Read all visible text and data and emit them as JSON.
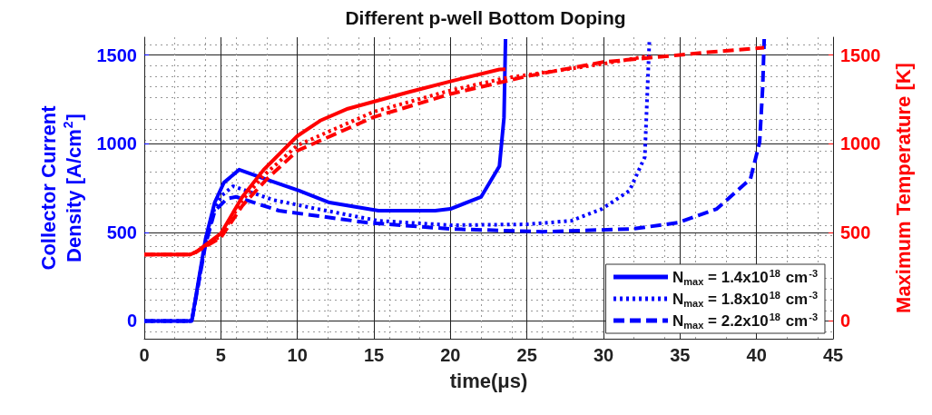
{
  "chart_data": {
    "type": "line",
    "title": "Different p-well Bottom Doping",
    "xlabel": "time(μs)",
    "ylabel": "Collector Current Density [A/cm$^{2}$]",
    "y2label": "Maximum Temperature [K]",
    "xlim": [
      0,
      45
    ],
    "xticks": [
      0,
      5,
      10,
      15,
      20,
      25,
      30,
      35,
      40,
      45
    ],
    "ylim": [
      -100,
      1600
    ],
    "yticks": [
      0,
      500,
      1000,
      1500
    ],
    "y2lim": [
      -100,
      1600
    ],
    "y2ticks": [
      0,
      500,
      1000,
      1500
    ],
    "grid": true,
    "legend": "bottom right",
    "marker": "none",
    "series": [
      {
        "name": "N$_{max}$ = 1.4x10$^{18}$ cm$^{-3}$",
        "color": "#0000ff",
        "line_style": "solid",
        "x": [
          0,
          3.1,
          4.0,
          4.6,
          5.2,
          6.2,
          7.9,
          10.1,
          12.1,
          15.3,
          19,
          20,
          22,
          23.2,
          23.5,
          23.6
        ],
        "values": [
          0,
          0,
          462,
          668,
          780,
          853,
          801,
          735,
          668,
          622,
          622,
          632,
          699,
          873,
          1146,
          1590
        ]
      },
      {
        "name": "N$_{max}$ = 1.8x10$^{18}$ cm$^{-3}$",
        "color": "#0000ff",
        "line_style": "dotted",
        "x": [
          0,
          3.1,
          4.0,
          4.6,
          5.1,
          5.8,
          8.4,
          11.3,
          15.3,
          20,
          25,
          27.9,
          29.9,
          31.7,
          32.7,
          32.8,
          33.0
        ],
        "values": [
          0,
          0,
          440,
          640,
          710,
          760,
          683,
          632,
          565,
          540,
          545,
          565,
          632,
          735,
          925,
          1146,
          1582
        ]
      },
      {
        "name": "N$_{max}$ = 2.2x10$^{18}$ cm$^{-3}$",
        "color": "#0000ff",
        "line_style": "dashed",
        "x": [
          0,
          3.1,
          4.0,
          4.6,
          5.4,
          6.0,
          8.8,
          14.5,
          20,
          26,
          31.9,
          34.9,
          37.4,
          39.6,
          40.2,
          40.4,
          40.5
        ],
        "values": [
          0,
          0,
          430,
          620,
          690,
          700,
          622,
          555,
          519,
          503,
          519,
          555,
          632,
          801,
          1007,
          1315,
          1590
        ]
      },
      {
        "color": "#ff0000",
        "line_style": "solid",
        "axis": "y2",
        "x": [
          0,
          3,
          3.4,
          5,
          6.4,
          7.8,
          10,
          11.5,
          13.3,
          17.2,
          20,
          23.2,
          23.6
        ],
        "values": [
          375,
          375,
          390,
          493,
          699,
          853,
          1043,
          1130,
          1197,
          1289,
          1351,
          1418,
          1420
        ]
      },
      {
        "color": "#ff0000",
        "line_style": "dotted",
        "axis": "y2",
        "x": [
          0,
          3,
          3.4,
          5,
          6.4,
          7.8,
          10,
          15,
          20,
          23.6,
          25,
          30,
          33
        ],
        "values": [
          375,
          375,
          390,
          480,
          680,
          820,
          990,
          1180,
          1300,
          1370,
          1387,
          1450,
          1495
        ]
      },
      {
        "color": "#ff0000",
        "line_style": "dashed",
        "axis": "y2",
        "x": [
          0,
          3,
          3.4,
          5,
          6.4,
          8,
          10,
          15,
          20,
          25,
          30,
          35,
          36.8,
          40.5
        ],
        "values": [
          375,
          375,
          390,
          470,
          650,
          800,
          960,
          1150,
          1280,
          1380,
          1460,
          1500,
          1515,
          1541
        ]
      }
    ]
  }
}
